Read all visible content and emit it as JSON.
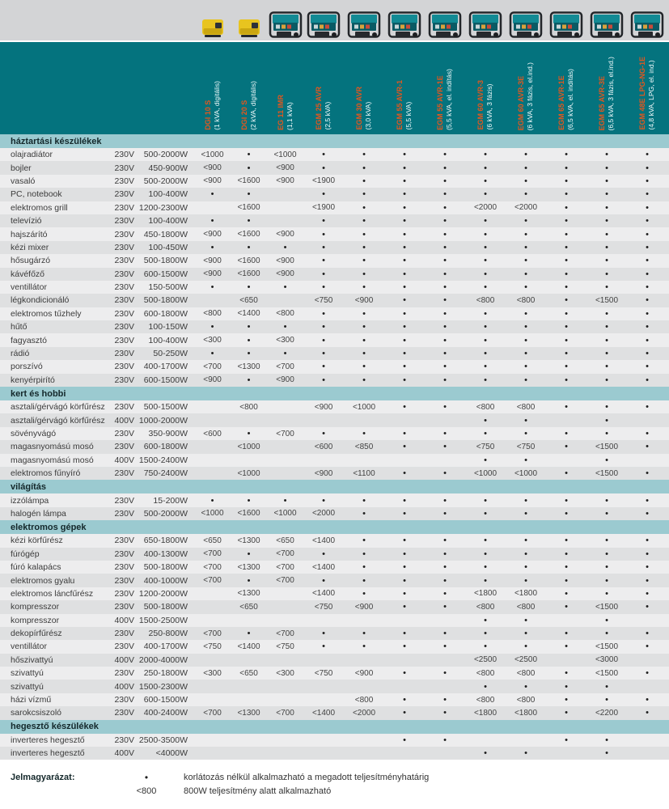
{
  "header": {
    "columns": [
      {
        "model": "DGI 10 S",
        "spec": "(1 kVA, digitális)",
        "icon": "inverter-generator",
        "body": "#e8c41f"
      },
      {
        "model": "DGI 20 S",
        "spec": "(2 kVA, digitális)",
        "icon": "inverter-generator",
        "body": "#e8c41f"
      },
      {
        "model": "EG 11 IMR",
        "spec": "(1,1 kVA)",
        "icon": "frame-generator",
        "body": "#128a94"
      },
      {
        "model": "EGM 25 AVR",
        "spec": "(2,5 kVA)",
        "icon": "frame-generator",
        "body": "#128a94"
      },
      {
        "model": "EGM 30 AVR",
        "spec": "(3,0 kVA)",
        "icon": "frame-generator",
        "body": "#128a94"
      },
      {
        "model": "EGM 55 AVR-1",
        "spec": "(5,5 kVA)",
        "icon": "frame-generator",
        "body": "#128a94"
      },
      {
        "model": "EGM 55 AVR-1E",
        "spec": "(5,5 kVA, el. indítás)",
        "icon": "frame-generator",
        "body": "#128a94"
      },
      {
        "model": "EGM 60 AVR-3",
        "spec": "(6 kVA, 3 fázis)",
        "icon": "frame-generator",
        "body": "#128a94"
      },
      {
        "model": "EGM 60 AVR-3E",
        "spec": "(6 kVA, 3 fázis, el.ind.)",
        "icon": "frame-generator",
        "body": "#128a94"
      },
      {
        "model": "EGM 65 AVR-1E",
        "spec": "(6,5 kVA, el. indítás)",
        "icon": "frame-generator",
        "body": "#128a94"
      },
      {
        "model": "EGM 65 AVR-3E",
        "spec": "(6,5 kVA, 3 fázis, el.ind.)",
        "icon": "frame-generator",
        "body": "#128a94"
      },
      {
        "model": "EGM 48E LPG-NG-1E",
        "spec": "(4,8 kVA, LPG, el. ind.)",
        "icon": "frame-generator",
        "body": "#128a94"
      }
    ]
  },
  "sections": [
    {
      "title": "háztartási készülékek",
      "rows": [
        {
          "name": "olajradiátor",
          "voltage": "230V",
          "power": "500-2000W",
          "values": [
            "<1000",
            "•",
            "<1000",
            "•",
            "•",
            "•",
            "•",
            "•",
            "•",
            "•",
            "•",
            "•"
          ]
        },
        {
          "name": "bojler",
          "voltage": "230V",
          "power": "450-900W",
          "values": [
            "<900",
            "•",
            "<900",
            "•",
            "•",
            "•",
            "•",
            "•",
            "•",
            "•",
            "•",
            "•"
          ]
        },
        {
          "name": "vasaló",
          "voltage": "230V",
          "power": "500-2000W",
          "values": [
            "<900",
            "<1600",
            "<900",
            "<1900",
            "•",
            "•",
            "•",
            "•",
            "•",
            "•",
            "•",
            "•"
          ]
        },
        {
          "name": "PC, notebook",
          "voltage": "230V",
          "power": "100-400W",
          "values": [
            "•",
            "•",
            "",
            "•",
            "•",
            "•",
            "•",
            "•",
            "•",
            "•",
            "•",
            "•"
          ]
        },
        {
          "name": "elektromos grill",
          "voltage": "230V",
          "power": "1200-2300W",
          "values": [
            "",
            "<1600",
            "",
            "<1900",
            "•",
            "•",
            "•",
            "<2000",
            "<2000",
            "•",
            "•",
            "•"
          ]
        },
        {
          "name": "televízió",
          "voltage": "230V",
          "power": "100-400W",
          "values": [
            "•",
            "•",
            "",
            "•",
            "•",
            "•",
            "•",
            "•",
            "•",
            "•",
            "•",
            "•"
          ]
        },
        {
          "name": "hajszárító",
          "voltage": "230V",
          "power": "450-1800W",
          "values": [
            "<900",
            "<1600",
            "<900",
            "•",
            "•",
            "•",
            "•",
            "•",
            "•",
            "•",
            "•",
            "•"
          ]
        },
        {
          "name": "kézi mixer",
          "voltage": "230V",
          "power": "100-450W",
          "values": [
            "•",
            "•",
            "•",
            "•",
            "•",
            "•",
            "•",
            "•",
            "•",
            "•",
            "•",
            "•"
          ]
        },
        {
          "name": "hősugárzó",
          "voltage": "230V",
          "power": "500-1800W",
          "values": [
            "<900",
            "<1600",
            "<900",
            "•",
            "•",
            "•",
            "•",
            "•",
            "•",
            "•",
            "•",
            "•"
          ]
        },
        {
          "name": "kávéfőző",
          "voltage": "230V",
          "power": "600-1500W",
          "values": [
            "<900",
            "<1600",
            "<900",
            "•",
            "•",
            "•",
            "•",
            "•",
            "•",
            "•",
            "•",
            "•"
          ]
        },
        {
          "name": "ventillátor",
          "voltage": "230V",
          "power": "150-500W",
          "values": [
            "•",
            "•",
            "•",
            "•",
            "•",
            "•",
            "•",
            "•",
            "•",
            "•",
            "•",
            "•"
          ]
        },
        {
          "name": "légkondicionáló",
          "voltage": "230V",
          "power": "500-1800W",
          "values": [
            "",
            "<650",
            "",
            "<750",
            "<900",
            "•",
            "•",
            "<800",
            "<800",
            "•",
            "<1500",
            "•"
          ]
        },
        {
          "name": "elektromos tűzhely",
          "voltage": "230V",
          "power": "600-1800W",
          "values": [
            "<800",
            "<1400",
            "<800",
            "•",
            "•",
            "•",
            "•",
            "•",
            "•",
            "•",
            "•",
            "•"
          ]
        },
        {
          "name": "hűtő",
          "voltage": "230V",
          "power": "100-150W",
          "values": [
            "•",
            "•",
            "•",
            "•",
            "•",
            "•",
            "•",
            "•",
            "•",
            "•",
            "•",
            "•"
          ]
        },
        {
          "name": "fagyasztó",
          "voltage": "230V",
          "power": "100-400W",
          "values": [
            "<300",
            "•",
            "<300",
            "•",
            "•",
            "•",
            "•",
            "•",
            "•",
            "•",
            "•",
            "•"
          ]
        },
        {
          "name": "rádió",
          "voltage": "230V",
          "power": "50-250W",
          "values": [
            "•",
            "•",
            "•",
            "•",
            "•",
            "•",
            "•",
            "•",
            "•",
            "•",
            "•",
            "•"
          ]
        },
        {
          "name": "porszívó",
          "voltage": "230V",
          "power": "400-1700W",
          "values": [
            "<700",
            "<1300",
            "<700",
            "•",
            "•",
            "•",
            "•",
            "•",
            "•",
            "•",
            "•",
            "•"
          ]
        },
        {
          "name": "kenyérpirító",
          "voltage": "230V",
          "power": "600-1500W",
          "values": [
            "<900",
            "•",
            "<900",
            "•",
            "•",
            "•",
            "•",
            "•",
            "•",
            "•",
            "•",
            "•"
          ]
        }
      ]
    },
    {
      "title": "kert és hobbi",
      "rows": [
        {
          "name": "asztali/gérvágó körfűrész",
          "voltage": "230V",
          "power": "500-1500W",
          "values": [
            "",
            "<800",
            "",
            "<900",
            "<1000",
            "•",
            "•",
            "<800",
            "<800",
            "•",
            "•",
            "•"
          ]
        },
        {
          "name": "asztali/gérvágó körfűrész",
          "voltage": "400V",
          "power": "1000-2000W",
          "values": [
            "",
            "",
            "",
            "",
            "",
            "",
            "",
            "•",
            "•",
            "",
            "•",
            ""
          ]
        },
        {
          "name": "sövényvágó",
          "voltage": "230V",
          "power": "350-900W",
          "values": [
            "<600",
            "•",
            "<700",
            "•",
            "•",
            "•",
            "•",
            "•",
            "•",
            "•",
            "•",
            "•"
          ]
        },
        {
          "name": "magasnyomású mosó",
          "voltage": "230V",
          "power": "600-1800W",
          "values": [
            "",
            "<1000",
            "",
            "<600",
            "<850",
            "•",
            "•",
            "<750",
            "<750",
            "•",
            "<1500",
            "•"
          ]
        },
        {
          "name": "magasnyomású mosó",
          "voltage": "400V",
          "power": "1500-2400W",
          "values": [
            "",
            "",
            "",
            "",
            "",
            "",
            "",
            "•",
            "•",
            "",
            "•",
            ""
          ]
        },
        {
          "name": "elektromos fűnyíró",
          "voltage": "230V",
          "power": "750-2400W",
          "values": [
            "",
            "<1000",
            "",
            "<900",
            "<1100",
            "•",
            "•",
            "<1000",
            "<1000",
            "•",
            "<1500",
            "•"
          ]
        }
      ]
    },
    {
      "title": "világítás",
      "rows": [
        {
          "name": "izzólámpa",
          "voltage": "230V",
          "power": "15-200W",
          "values": [
            "•",
            "•",
            "•",
            "•",
            "•",
            "•",
            "•",
            "•",
            "•",
            "•",
            "•",
            "•"
          ]
        },
        {
          "name": "halogén lámpa",
          "voltage": "230V",
          "power": "500-2000W",
          "values": [
            "<1000",
            "<1600",
            "<1000",
            "<2000",
            "•",
            "•",
            "•",
            "•",
            "•",
            "•",
            "•",
            "•"
          ]
        }
      ]
    },
    {
      "title": "elektromos gépek",
      "rows": [
        {
          "name": "kézi körfűrész",
          "voltage": "230V",
          "power": "650-1800W",
          "values": [
            "<650",
            "<1300",
            "<650",
            "<1400",
            "•",
            "•",
            "•",
            "•",
            "•",
            "•",
            "•",
            "•"
          ]
        },
        {
          "name": "fúrógép",
          "voltage": "230V",
          "power": "400-1300W",
          "values": [
            "<700",
            "•",
            "<700",
            "•",
            "•",
            "•",
            "•",
            "•",
            "•",
            "•",
            "•",
            "•"
          ]
        },
        {
          "name": "fúró kalapács",
          "voltage": "230V",
          "power": "500-1800W",
          "values": [
            "<700",
            "<1300",
            "<700",
            "<1400",
            "•",
            "•",
            "•",
            "•",
            "•",
            "•",
            "•",
            "•"
          ]
        },
        {
          "name": "elektromos gyalu",
          "voltage": "230V",
          "power": "400-1000W",
          "values": [
            "<700",
            "•",
            "<700",
            "•",
            "•",
            "•",
            "•",
            "•",
            "•",
            "•",
            "•",
            "•"
          ]
        },
        {
          "name": "elektromos láncfűrész",
          "voltage": "230V",
          "power": "1200-2000W",
          "values": [
            "",
            "<1300",
            "",
            "<1400",
            "•",
            "•",
            "•",
            "<1800",
            "<1800",
            "•",
            "•",
            "•"
          ]
        },
        {
          "name": "kompresszor",
          "voltage": "230V",
          "power": "500-1800W",
          "values": [
            "",
            "<650",
            "",
            "<750",
            "<900",
            "•",
            "•",
            "<800",
            "<800",
            "•",
            "<1500",
            "•"
          ]
        },
        {
          "name": "kompresszor",
          "voltage": "400V",
          "power": "1500-2500W",
          "values": [
            "",
            "",
            "",
            "",
            "",
            "",
            "",
            "•",
            "•",
            "",
            "•",
            ""
          ]
        },
        {
          "name": "dekopírfűrész",
          "voltage": "230V",
          "power": "250-800W",
          "values": [
            "<700",
            "•",
            "<700",
            "•",
            "•",
            "•",
            "•",
            "•",
            "•",
            "•",
            "•",
            "•"
          ]
        },
        {
          "name": "ventillátor",
          "voltage": "230V",
          "power": "400-1700W",
          "values": [
            "<750",
            "<1400",
            "<750",
            "•",
            "•",
            "•",
            "•",
            "•",
            "•",
            "•",
            "<1500",
            "•"
          ]
        },
        {
          "name": "hőszivattyú",
          "voltage": "400V",
          "power": "2000-4000W",
          "values": [
            "",
            "",
            "",
            "",
            "",
            "",
            "",
            "<2500",
            "<2500",
            "",
            "<3000",
            ""
          ]
        },
        {
          "name": "szivattyú",
          "voltage": "230V",
          "power": "250-1800W",
          "values": [
            "<300",
            "<650",
            "<300",
            "<750",
            "<900",
            "•",
            "•",
            "<800",
            "<800",
            "•",
            "<1500",
            "•"
          ]
        },
        {
          "name": "szivattyú",
          "voltage": "400V",
          "power": "1500-2300W",
          "values": [
            "",
            "",
            "",
            "",
            "",
            "",
            "",
            "•",
            "•",
            "•",
            "•",
            ""
          ]
        },
        {
          "name": "házi vízmű",
          "voltage": "230V",
          "power": "600-1500W",
          "values": [
            "",
            "",
            "",
            "",
            "<800",
            "•",
            "•",
            "<800",
            "<800",
            "•",
            "•",
            "•"
          ]
        },
        {
          "name": "sarokcsiszoló",
          "voltage": "230V",
          "power": "400-2400W",
          "values": [
            "<700",
            "<1300",
            "<700",
            "<1400",
            "<2000",
            "•",
            "•",
            "<1800",
            "<1800",
            "•",
            "<2200",
            "•"
          ]
        }
      ]
    },
    {
      "title": "hegesztő készülékek",
      "rows": [
        {
          "name": "inverteres hegesztő",
          "voltage": "230V",
          "power": "2500-3500W",
          "values": [
            "",
            "",
            "",
            "",
            "",
            "•",
            "•",
            "",
            "",
            "•",
            "•",
            ""
          ]
        },
        {
          "name": "inverteres hegesztő",
          "voltage": "400V",
          "power": "<4000W",
          "values": [
            "",
            "",
            "",
            "",
            "",
            "",
            "",
            "•",
            "•",
            "",
            "•",
            ""
          ]
        }
      ]
    }
  ],
  "legend": {
    "title": "Jelmagyarázat:",
    "items": [
      {
        "symbol": "•",
        "text": "korlátozás nélkül alkalmazható a megadott teljesítményhatárig"
      },
      {
        "symbol": "<800",
        "text": "800W teljesítmény alatt alkalmazható"
      }
    ]
  },
  "colors": {
    "header_band": "#04737e",
    "section_band": "#9bcad0",
    "top_strip": "#d3d4d6",
    "row_light": "#ededee",
    "row_dark": "#dfe0e1",
    "model_text": "#e2571e",
    "spec_text": "#f2fbfc",
    "body_text": "#3b3b3b"
  }
}
